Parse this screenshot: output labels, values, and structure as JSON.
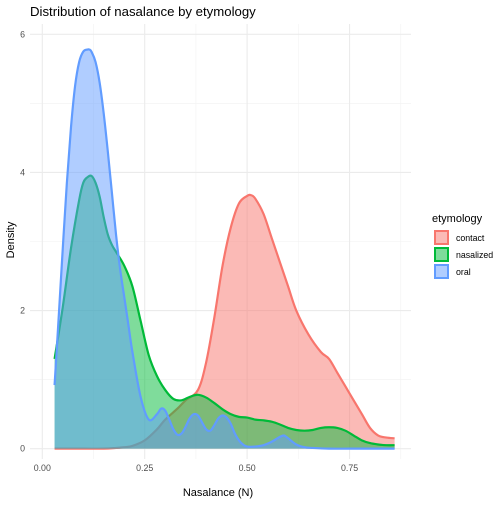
{
  "chart_data": {
    "type": "area",
    "title": "Distribution of nasalance by etymology",
    "xlabel": "Nasalance (N)",
    "ylabel": "Density",
    "xlim": [
      -0.03,
      0.9
    ],
    "ylim": [
      -0.15,
      6.15
    ],
    "x_ticks": [
      0.0,
      0.25,
      0.5,
      0.75
    ],
    "x_tick_labels": [
      "0.00",
      "0.25",
      "0.50",
      "0.75"
    ],
    "y_ticks": [
      0,
      2,
      4,
      6
    ],
    "y_tick_labels": [
      "0",
      "2",
      "4",
      "6"
    ],
    "grid": true,
    "legend": {
      "title": "etymology",
      "position": "right"
    },
    "series": [
      {
        "name": "contact",
        "color": "#F8766D",
        "x": [
          0.03,
          0.1,
          0.15,
          0.18,
          0.2,
          0.22,
          0.25,
          0.28,
          0.3,
          0.33,
          0.35,
          0.38,
          0.4,
          0.42,
          0.44,
          0.46,
          0.48,
          0.5,
          0.51,
          0.52,
          0.54,
          0.56,
          0.58,
          0.6,
          0.62,
          0.65,
          0.68,
          0.7,
          0.72,
          0.75,
          0.78,
          0.8,
          0.82,
          0.84,
          0.86
        ],
        "values": [
          0.0,
          0.0,
          0.0,
          0.01,
          0.02,
          0.04,
          0.12,
          0.28,
          0.42,
          0.58,
          0.7,
          0.85,
          1.25,
          1.9,
          2.65,
          3.2,
          3.55,
          3.66,
          3.67,
          3.62,
          3.4,
          3.05,
          2.7,
          2.35,
          2.0,
          1.65,
          1.4,
          1.3,
          1.1,
          0.8,
          0.5,
          0.3,
          0.19,
          0.16,
          0.15
        ]
      },
      {
        "name": "nasalized",
        "color": "#00BA38",
        "x": [
          0.03,
          0.05,
          0.07,
          0.09,
          0.1,
          0.11,
          0.12,
          0.13,
          0.14,
          0.15,
          0.16,
          0.17,
          0.18,
          0.2,
          0.22,
          0.24,
          0.26,
          0.28,
          0.3,
          0.32,
          0.34,
          0.36,
          0.38,
          0.4,
          0.42,
          0.44,
          0.46,
          0.48,
          0.5,
          0.52,
          0.54,
          0.56,
          0.58,
          0.6,
          0.62,
          0.64,
          0.66,
          0.68,
          0.7,
          0.72,
          0.74,
          0.76,
          0.78,
          0.8,
          0.82,
          0.84,
          0.86
        ],
        "values": [
          1.3,
          2.05,
          2.9,
          3.6,
          3.85,
          3.93,
          3.95,
          3.85,
          3.65,
          3.35,
          3.1,
          2.95,
          2.85,
          2.65,
          2.35,
          1.85,
          1.35,
          1.05,
          0.85,
          0.72,
          0.7,
          0.75,
          0.78,
          0.74,
          0.66,
          0.57,
          0.5,
          0.46,
          0.45,
          0.42,
          0.41,
          0.39,
          0.35,
          0.3,
          0.27,
          0.26,
          0.27,
          0.3,
          0.31,
          0.3,
          0.26,
          0.19,
          0.12,
          0.08,
          0.06,
          0.05,
          0.05
        ]
      },
      {
        "name": "oral",
        "color": "#619CFF",
        "x": [
          0.03,
          0.04,
          0.05,
          0.06,
          0.07,
          0.08,
          0.09,
          0.1,
          0.11,
          0.115,
          0.12,
          0.13,
          0.14,
          0.15,
          0.16,
          0.17,
          0.18,
          0.19,
          0.2,
          0.21,
          0.22,
          0.24,
          0.26,
          0.28,
          0.29,
          0.3,
          0.31,
          0.32,
          0.33,
          0.34,
          0.35,
          0.36,
          0.37,
          0.38,
          0.39,
          0.4,
          0.41,
          0.42,
          0.43,
          0.44,
          0.45,
          0.46,
          0.47,
          0.48,
          0.49,
          0.5,
          0.52,
          0.54,
          0.56,
          0.58,
          0.59,
          0.6,
          0.62,
          0.64,
          0.66,
          0.7,
          0.75,
          0.8,
          0.86
        ],
        "values": [
          0.92,
          1.9,
          2.9,
          3.85,
          4.65,
          5.25,
          5.6,
          5.75,
          5.78,
          5.78,
          5.75,
          5.6,
          5.3,
          4.85,
          4.3,
          3.7,
          3.1,
          2.6,
          2.2,
          1.8,
          1.4,
          0.75,
          0.42,
          0.5,
          0.58,
          0.55,
          0.42,
          0.28,
          0.2,
          0.22,
          0.32,
          0.44,
          0.5,
          0.48,
          0.38,
          0.28,
          0.26,
          0.34,
          0.44,
          0.48,
          0.45,
          0.36,
          0.22,
          0.12,
          0.06,
          0.03,
          0.03,
          0.05,
          0.1,
          0.17,
          0.19,
          0.15,
          0.06,
          0.02,
          0.01,
          0.0,
          0.0,
          0.0,
          0.0
        ]
      }
    ]
  }
}
